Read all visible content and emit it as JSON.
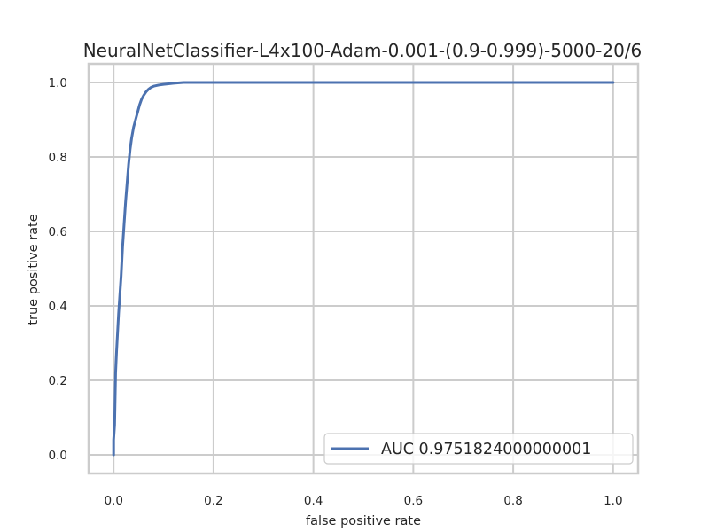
{
  "chart_data": {
    "type": "line",
    "title": "NeuralNetClassifier-L4x100-Adam-0.001-(0.9-0.999)-5000-20/6",
    "xlabel": "false positive rate",
    "ylabel": "true positive rate",
    "xlim": [
      -0.05,
      1.05
    ],
    "ylim": [
      -0.05,
      1.05
    ],
    "xticks": [
      0.0,
      0.2,
      0.4,
      0.6,
      0.8,
      1.0
    ],
    "xtick_labels": [
      "0.0",
      "0.2",
      "0.4",
      "0.6",
      "0.8",
      "1.0"
    ],
    "yticks": [
      0.0,
      0.2,
      0.4,
      0.6,
      0.8,
      1.0
    ],
    "ytick_labels": [
      "0.0",
      "0.2",
      "0.4",
      "0.6",
      "0.8",
      "1.0"
    ],
    "grid": true,
    "legend_position": "lower-right",
    "series": [
      {
        "name": "AUC 0.9751824000000001",
        "color": "#4c72b0",
        "x": [
          0.0,
          0.0,
          0.002,
          0.003,
          0.004,
          0.006,
          0.008,
          0.01,
          0.012,
          0.015,
          0.018,
          0.021,
          0.024,
          0.027,
          0.03,
          0.033,
          0.036,
          0.04,
          0.044,
          0.048,
          0.052,
          0.056,
          0.06,
          0.065,
          0.07,
          0.075,
          0.08,
          0.09,
          0.1,
          0.12,
          0.14,
          0.2,
          0.4,
          0.6,
          0.8,
          1.0
        ],
        "y": [
          0.0,
          0.04,
          0.08,
          0.15,
          0.22,
          0.28,
          0.33,
          0.38,
          0.42,
          0.48,
          0.56,
          0.62,
          0.68,
          0.73,
          0.78,
          0.82,
          0.85,
          0.88,
          0.9,
          0.92,
          0.94,
          0.955,
          0.965,
          0.975,
          0.982,
          0.987,
          0.99,
          0.993,
          0.995,
          0.998,
          1.0,
          1.0,
          1.0,
          1.0,
          1.0,
          1.0
        ]
      }
    ]
  }
}
